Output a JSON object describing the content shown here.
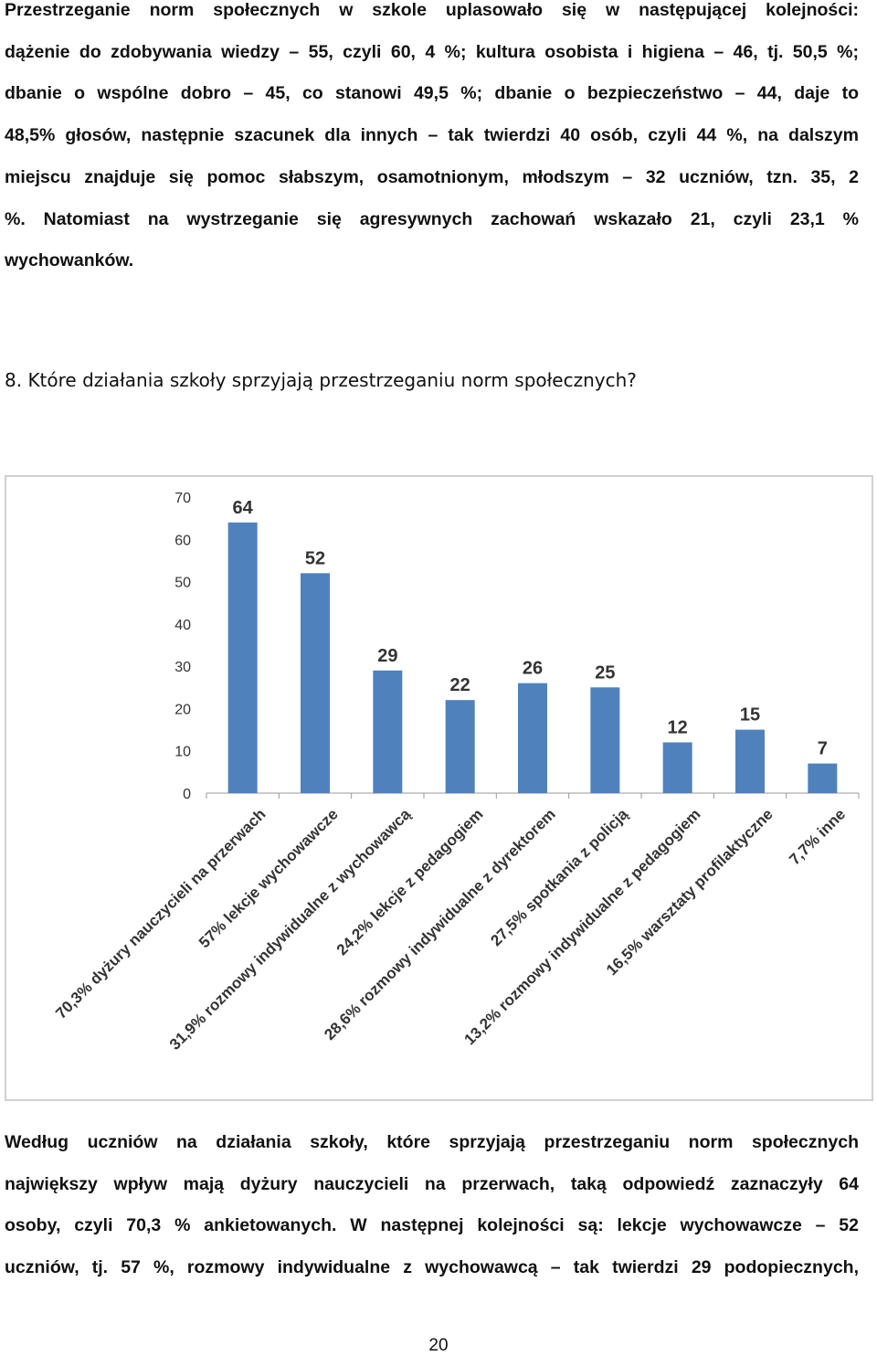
{
  "paragraph1": {
    "lines": [
      "Przestrzeganie norm społecznych w szkole uplasowało się w następującej kolejności:",
      "dążenie do zdobywania wiedzy – 55, czyli 60, 4 %; kultura osobista i higiena – 46, tj. 50,5 %;",
      "dbanie o wspólne dobro – 45, co stanowi 49,5 %; dbanie o bezpieczeństwo – 44, daje to",
      "48,5% głosów, następnie szacunek dla innych – tak twierdzi 40 osób, czyli 44 %, na dalszym",
      "miejscu znajduje się pomoc słabszym, osamotnionym, młodszym – 32 uczniów, tzn. 35, 2",
      "%. Natomiast na wystrzeganie się agresywnych zachowań wskazało 21, czyli 23,1 %",
      "wychowanków."
    ]
  },
  "question": "8. Które działania szkoły sprzyjają przestrzeganiu norm społecznych?",
  "chart_data": {
    "type": "bar",
    "categories": [
      "70,3% dyżury nauczycieli na przerwach",
      "57% lekcje wychowawcze",
      "31,9% rozmowy indywidualne z wychowawcą",
      "24,2% lekcje z pedagogiem",
      "28,6% rozmowy indywidualne z dyrektorem",
      "27,5% spotkania z policją",
      "13,2% rozmowy indywidualne z pedagogiem",
      "16,5% warsztaty profilaktyczne",
      "7,7% inne"
    ],
    "values": [
      64,
      52,
      29,
      22,
      26,
      25,
      12,
      15,
      7
    ],
    "data_labels": [
      "64",
      "52",
      "29",
      "22",
      "26",
      "25",
      "12",
      "15",
      "7"
    ],
    "y_ticks": [
      "0",
      "10",
      "20",
      "30",
      "40",
      "50",
      "60",
      "70"
    ],
    "ylim": [
      0,
      70
    ],
    "grid": false,
    "bar_color": "#4f81bd",
    "title": "",
    "xlabel": "",
    "ylabel": ""
  },
  "paragraph2": {
    "lines": [
      "Według uczniów na działania szkoły, które sprzyjają przestrzeganiu norm społecznych",
      "największy wpływ mają dyżury nauczycieli na przerwach, taką odpowiedź zaznaczyły 64",
      "osoby, czyli 70,3 % ankietowanych. W następnej kolejności są: lekcje wychowawcze – 52",
      "uczniów, tj. 57 %, rozmowy indywidualne z wychowawcą – tak twierdzi 29 podopiecznych,"
    ]
  },
  "page_number": "20"
}
